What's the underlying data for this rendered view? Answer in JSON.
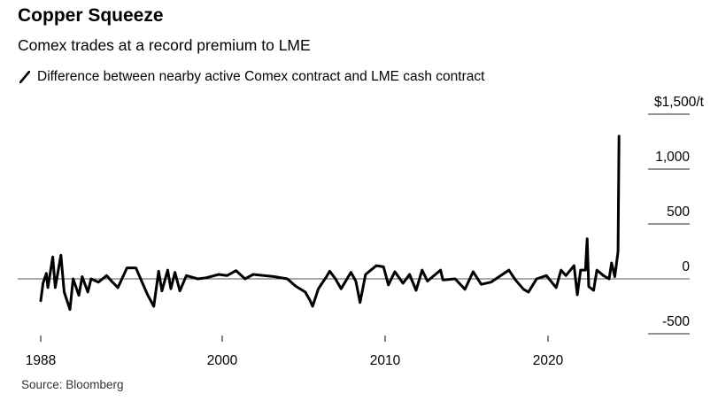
{
  "chart_data": {
    "type": "line",
    "title": "Copper Squeeze",
    "subtitle": "Comex trades at a record premium to LME",
    "legend": [
      {
        "name": "Difference between nearby active Comex contract and LME cash contract",
        "color": "#000000"
      }
    ],
    "legend_placement": "top-left",
    "source": "Source: Bloomberg",
    "xlabel": "",
    "ylabel": "",
    "y_unit_label": "$1,500/t",
    "ylim": [
      -500,
      1500
    ],
    "y_ticks": [
      {
        "value": 1500,
        "label": "$1,500/t"
      },
      {
        "value": 1000,
        "label": "1,000"
      },
      {
        "value": 500,
        "label": "500"
      },
      {
        "value": 0,
        "label": "0"
      },
      {
        "value": -500,
        "label": "-500"
      }
    ],
    "x_ticks": [
      {
        "value": 1988,
        "label": "1988"
      },
      {
        "value": 2000,
        "label": "2000"
      },
      {
        "value": 2010,
        "label": "2010"
      },
      {
        "value": 2020,
        "label": "2020"
      }
    ],
    "grid": "horizontal-right-stubs",
    "series": [
      {
        "color": "#000000",
        "x": [
          1988.86,
          1989.0,
          1989.2,
          1989.3,
          1989.6,
          1989.75,
          1990.1,
          1990.3,
          1990.65,
          1990.85,
          1991.2,
          1991.4,
          1991.75,
          1991.95,
          1992.4,
          1992.9,
          1993.2,
          1993.6,
          1994.15,
          1994.7,
          1995.4,
          1995.8,
          1996.1,
          1996.3,
          1996.65,
          1996.85,
          1997.1,
          1997.4,
          1997.8,
          1998.5,
          1999.0,
          1999.8,
          2000.3,
          2000.85,
          2001.4,
          2001.9,
          2003.2,
          2004.0,
          2004.5,
          2005.1,
          2005.4,
          2005.55,
          2005.9,
          2006.4,
          2006.6,
          2006.95,
          2007.3,
          2007.9,
          2008.2,
          2008.46,
          2008.8,
          2009.46,
          2009.9,
          2010.2,
          2010.6,
          2011.1,
          2011.5,
          2011.9,
          2012.27,
          2012.6,
          2013.4,
          2013.55,
          2014.3,
          2014.9,
          2015.4,
          2015.9,
          2016.5,
          2017.0,
          2017.6,
          2018.0,
          2018.5,
          2018.8,
          2019.3,
          2019.9,
          2020.5,
          2020.8,
          2021.1,
          2021.6,
          2021.8,
          2022.0,
          2022.3,
          2022.4,
          2022.5,
          2022.8,
          2023.0,
          2023.4,
          2023.75,
          2023.9,
          2024.1,
          2024.3,
          2024.36
        ],
        "y": [
          -200,
          -40,
          50,
          -80,
          200,
          -80,
          215,
          -120,
          -280,
          0,
          -150,
          20,
          -120,
          0,
          -30,
          30,
          -20,
          -80,
          100,
          100,
          -140,
          -250,
          70,
          -110,
          80,
          -90,
          60,
          -110,
          30,
          0,
          10,
          40,
          30,
          75,
          0,
          40,
          20,
          0,
          -65,
          -120,
          -200,
          -250,
          -90,
          20,
          70,
          0,
          -90,
          60,
          -20,
          -215,
          40,
          120,
          110,
          -55,
          65,
          -40,
          40,
          -105,
          80,
          -20,
          80,
          -10,
          0,
          -95,
          65,
          -50,
          -30,
          20,
          80,
          -10,
          -95,
          -120,
          0,
          30,
          -80,
          80,
          30,
          120,
          -145,
          80,
          80,
          365,
          -70,
          -105,
          80,
          30,
          0,
          145,
          20,
          250,
          1300
        ]
      }
    ]
  }
}
